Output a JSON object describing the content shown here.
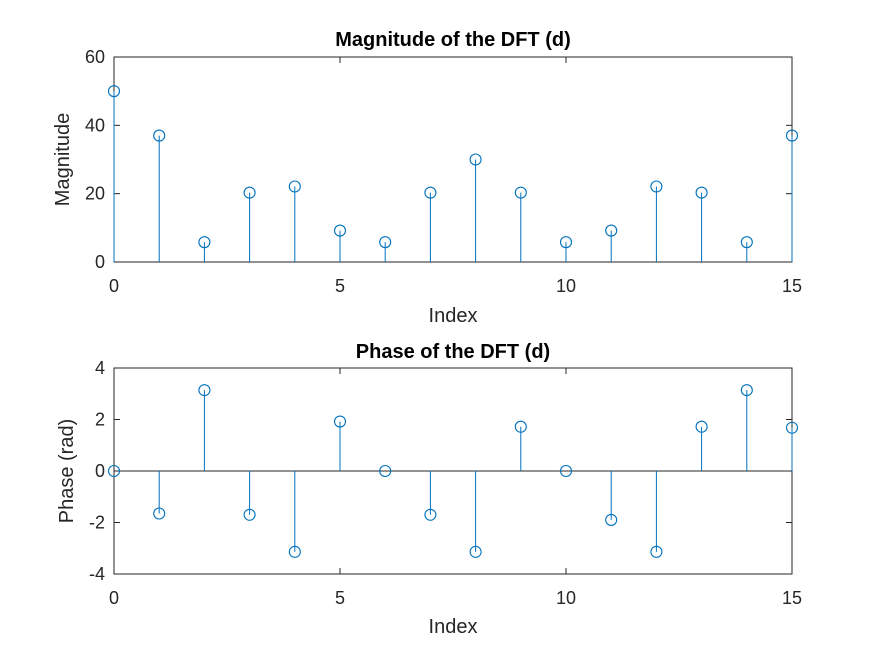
{
  "colors": {
    "stem": "#0072BD",
    "axis": "#262626",
    "background": "#ffffff"
  },
  "chart_data": [
    {
      "type": "stem",
      "title": "Magnitude of the DFT (d)",
      "xlabel": "Index",
      "ylabel": "Magnitude",
      "xlim": [
        0,
        15
      ],
      "ylim": [
        0,
        60
      ],
      "xticks": [
        0,
        5,
        10,
        15
      ],
      "yticks": [
        0,
        20,
        40,
        60
      ],
      "x": [
        0,
        1,
        2,
        3,
        4,
        5,
        6,
        7,
        8,
        9,
        10,
        11,
        12,
        13,
        14,
        15
      ],
      "y": [
        50,
        37,
        5.8,
        20.3,
        22.1,
        9.2,
        5.8,
        20.3,
        30,
        20.3,
        5.8,
        9.2,
        22.1,
        20.3,
        5.8,
        37
      ],
      "grid": false
    },
    {
      "type": "stem",
      "title": "Phase of the DFT (d)",
      "xlabel": "Index",
      "ylabel": "Phase (rad)",
      "xlim": [
        0,
        15
      ],
      "ylim": [
        -4,
        4
      ],
      "xticks": [
        0,
        5,
        10,
        15
      ],
      "yticks": [
        -4,
        -2,
        0,
        2,
        4
      ],
      "x": [
        0,
        1,
        2,
        3,
        4,
        5,
        6,
        7,
        8,
        9,
        10,
        11,
        12,
        13,
        14,
        15
      ],
      "y": [
        0,
        -1.65,
        3.14,
        -1.7,
        -3.14,
        1.92,
        0,
        -1.7,
        -3.14,
        1.72,
        0,
        -1.9,
        -3.14,
        1.72,
        3.14,
        1.68
      ],
      "grid": false
    }
  ]
}
